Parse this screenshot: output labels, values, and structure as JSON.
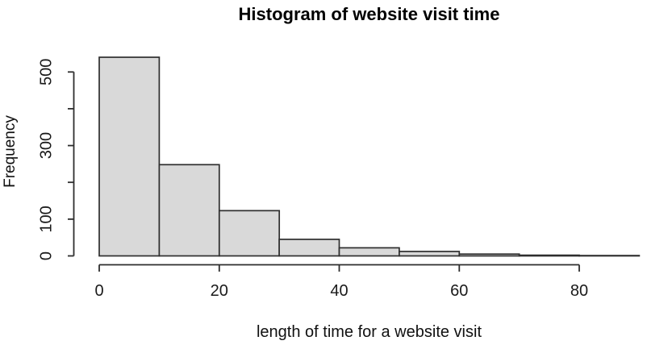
{
  "window": {
    "background": "#ffffff"
  },
  "chart_data": {
    "type": "histogram",
    "title": "Histogram of website visit time",
    "xlabel": "length of time for a website visit",
    "ylabel": "Frequency",
    "bins": {
      "edges": [
        0,
        10,
        20,
        30,
        40,
        50,
        60,
        70,
        80,
        90
      ],
      "counts": [
        540,
        248,
        123,
        45,
        22,
        12,
        5,
        2,
        1
      ]
    },
    "x_ticks": [
      {
        "value": 0,
        "label": "0"
      },
      {
        "value": 20,
        "label": "20"
      },
      {
        "value": 40,
        "label": "40"
      },
      {
        "value": 60,
        "label": "60"
      },
      {
        "value": 80,
        "label": "80"
      }
    ],
    "y_ticks": [
      {
        "value": 0,
        "label": "0"
      },
      {
        "value": 100,
        "label": "100"
      },
      {
        "value": 200,
        "label": ""
      },
      {
        "value": 300,
        "label": "300"
      },
      {
        "value": 400,
        "label": ""
      },
      {
        "value": 500,
        "label": "500"
      }
    ],
    "xlim": [
      0,
      90
    ],
    "ylim": [
      0,
      500
    ],
    "grid": false,
    "legend_position": "none",
    "colors": {
      "bar_fill": "#d9d9d9",
      "bar_stroke": "#2e2e2e",
      "axis": "#2e2e2e",
      "tick_text": "#1a1a1a"
    }
  }
}
